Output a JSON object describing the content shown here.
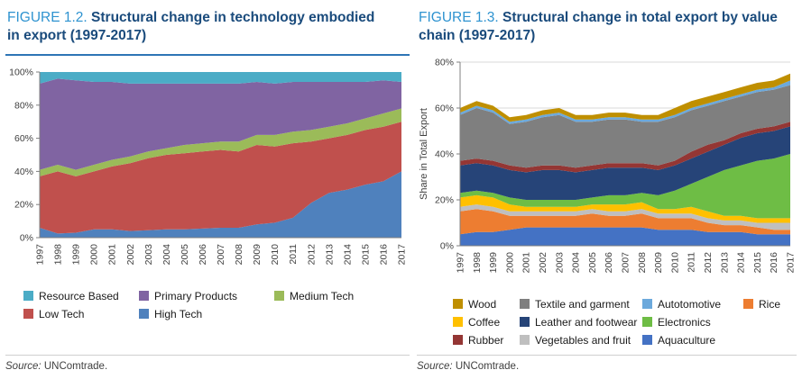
{
  "chart_data": [
    {
      "type": "area",
      "stacked": true,
      "figure_label": "FIGURE 1.2.",
      "title": "Structural change in technology embodied in export (1997-2017)",
      "source_label": "Source:",
      "source_value": "UNComtrade.",
      "categories": [
        "1997",
        "1998",
        "1999",
        "2000",
        "2001",
        "2002",
        "2003",
        "2004",
        "2005",
        "2006",
        "2007",
        "2008",
        "2009",
        "2010",
        "2011",
        "2012",
        "2013",
        "2014",
        "2015",
        "2016",
        "2017"
      ],
      "ylim": [
        0,
        100
      ],
      "ytick_step": 20,
      "ytick_suffix": "%",
      "grid": false,
      "legend_position": "bottom",
      "series": [
        {
          "name": "High Tech",
          "color": "#4F81BD",
          "values": [
            6,
            2.5,
            3,
            5,
            5,
            4,
            4.5,
            5,
            5,
            5.5,
            6,
            6,
            8,
            9,
            12,
            21,
            27,
            29,
            32,
            34,
            40
          ]
        },
        {
          "name": "Low Tech",
          "color": "#C0504D",
          "values": [
            31,
            37.5,
            34,
            35,
            38,
            41,
            43.5,
            45,
            46,
            46.5,
            47,
            46,
            48,
            46,
            45,
            37,
            33,
            33,
            33,
            33,
            30
          ]
        },
        {
          "name": "Medium Tech",
          "color": "#9BBB59",
          "values": [
            4,
            4,
            4,
            4,
            4,
            4,
            4,
            4,
            5,
            5,
            5,
            6,
            6,
            7,
            7,
            7,
            7,
            7,
            7,
            8,
            8
          ]
        },
        {
          "name": "Primary Products",
          "color": "#8064A2",
          "values": [
            52,
            52,
            54,
            50,
            47,
            44,
            41,
            39,
            37,
            36,
            35,
            35,
            32,
            31,
            30,
            29,
            27,
            25,
            22,
            20,
            16
          ]
        },
        {
          "name": "Resource Based",
          "color": "#4BACC6",
          "values": [
            7,
            4,
            5,
            6,
            6,
            7,
            7,
            7,
            7,
            7,
            7,
            7,
            6,
            7,
            6,
            6,
            6,
            6,
            6,
            5,
            6
          ]
        }
      ],
      "legend_rows": [
        [
          "Resource Based",
          "Primary Products",
          "Medium Tech"
        ],
        [
          "Low Tech",
          "High Tech"
        ]
      ]
    },
    {
      "type": "area",
      "stacked": true,
      "figure_label": "FIGURE 1.3.",
      "title": "Structural change in total export by value chain (1997-2017)",
      "source_label": "Source:",
      "source_value": "UNComtrade.",
      "categories": [
        "1997",
        "1998",
        "1999",
        "2000",
        "2001",
        "2002",
        "2003",
        "2004",
        "2005",
        "2006",
        "2007",
        "2008",
        "2009",
        "2010",
        "2011",
        "2012",
        "2013",
        "2014",
        "2015",
        "2016",
        "2017"
      ],
      "ylabel": "Share in Total Export",
      "ylim": [
        0,
        80
      ],
      "ytick_step": 20,
      "ytick_suffix": "%",
      "grid": true,
      "legend_position": "bottom",
      "series": [
        {
          "name": "Aquaculture",
          "color": "#4472C4",
          "values": [
            5,
            6,
            6,
            7,
            8,
            8,
            8,
            8,
            8,
            8,
            8,
            8,
            7,
            7,
            7,
            6,
            6,
            6,
            5,
            5,
            5
          ]
        },
        {
          "name": "Rice",
          "color": "#ED7D31",
          "values": [
            10,
            10,
            9,
            6,
            5,
            5,
            5,
            5,
            6,
            5,
            5,
            6,
            5,
            5,
            5,
            4,
            3,
            3,
            3,
            2,
            2
          ]
        },
        {
          "name": "Vegetables and fruit",
          "color": "#BFBFBF",
          "values": [
            2,
            2,
            2,
            2,
            2,
            2,
            2,
            2,
            2,
            2,
            2,
            2,
            2,
            2,
            2,
            2,
            2,
            2,
            2,
            3,
            3
          ]
        },
        {
          "name": "Coffee",
          "color": "#FFC000",
          "values": [
            4,
            4,
            4,
            3,
            2,
            2,
            2,
            2,
            2,
            3,
            3,
            3,
            2,
            2,
            3,
            3,
            2,
            2,
            2,
            2,
            2
          ]
        },
        {
          "name": "Electronics",
          "color": "#6EBD45",
          "values": [
            2,
            2,
            2,
            3,
            3,
            3,
            3,
            3,
            3,
            4,
            4,
            4,
            6,
            8,
            10,
            15,
            20,
            22,
            25,
            26,
            28
          ]
        },
        {
          "name": "Leather and footwear",
          "color": "#264478",
          "values": [
            12,
            12,
            12,
            12,
            12,
            13,
            13,
            12,
            12,
            12,
            12,
            11,
            11,
            11,
            11,
            11,
            11,
            12,
            12,
            12,
            12
          ]
        },
        {
          "name": "Rubber",
          "color": "#943634",
          "values": [
            2,
            2,
            2,
            2,
            2,
            2,
            2,
            2,
            2,
            2,
            2,
            2,
            2,
            2,
            3,
            3,
            2,
            2,
            2,
            2,
            2
          ]
        },
        {
          "name": "Textile and garment",
          "color": "#7F7F7F",
          "values": [
            20,
            22,
            21,
            18,
            20,
            21,
            22,
            20,
            19,
            19,
            19,
            18,
            19,
            19,
            18,
            17,
            17,
            16,
            16,
            16,
            16
          ]
        },
        {
          "name": "Autotomotive",
          "color": "#6CA9DC",
          "values": [
            1,
            1,
            1,
            1,
            1,
            1,
            1,
            1,
            1,
            1,
            1,
            1,
            1,
            1,
            1,
            1,
            1,
            1,
            1,
            1,
            2
          ]
        },
        {
          "name": "Wood",
          "color": "#BF8F00",
          "values": [
            2,
            2,
            2,
            2,
            2,
            2,
            2,
            2,
            2,
            2,
            2,
            2,
            2,
            3,
            3,
            3,
            3,
            3,
            3,
            3,
            3
          ]
        }
      ],
      "legend_rows": [
        [
          "Wood",
          "Textile and garment",
          "Autotomotive",
          "Rice"
        ],
        [
          "Coffee",
          "Leather and footwear",
          "Electronics"
        ],
        [
          "Rubber",
          "Vegetables and fruit",
          "Aquaculture"
        ]
      ]
    }
  ]
}
